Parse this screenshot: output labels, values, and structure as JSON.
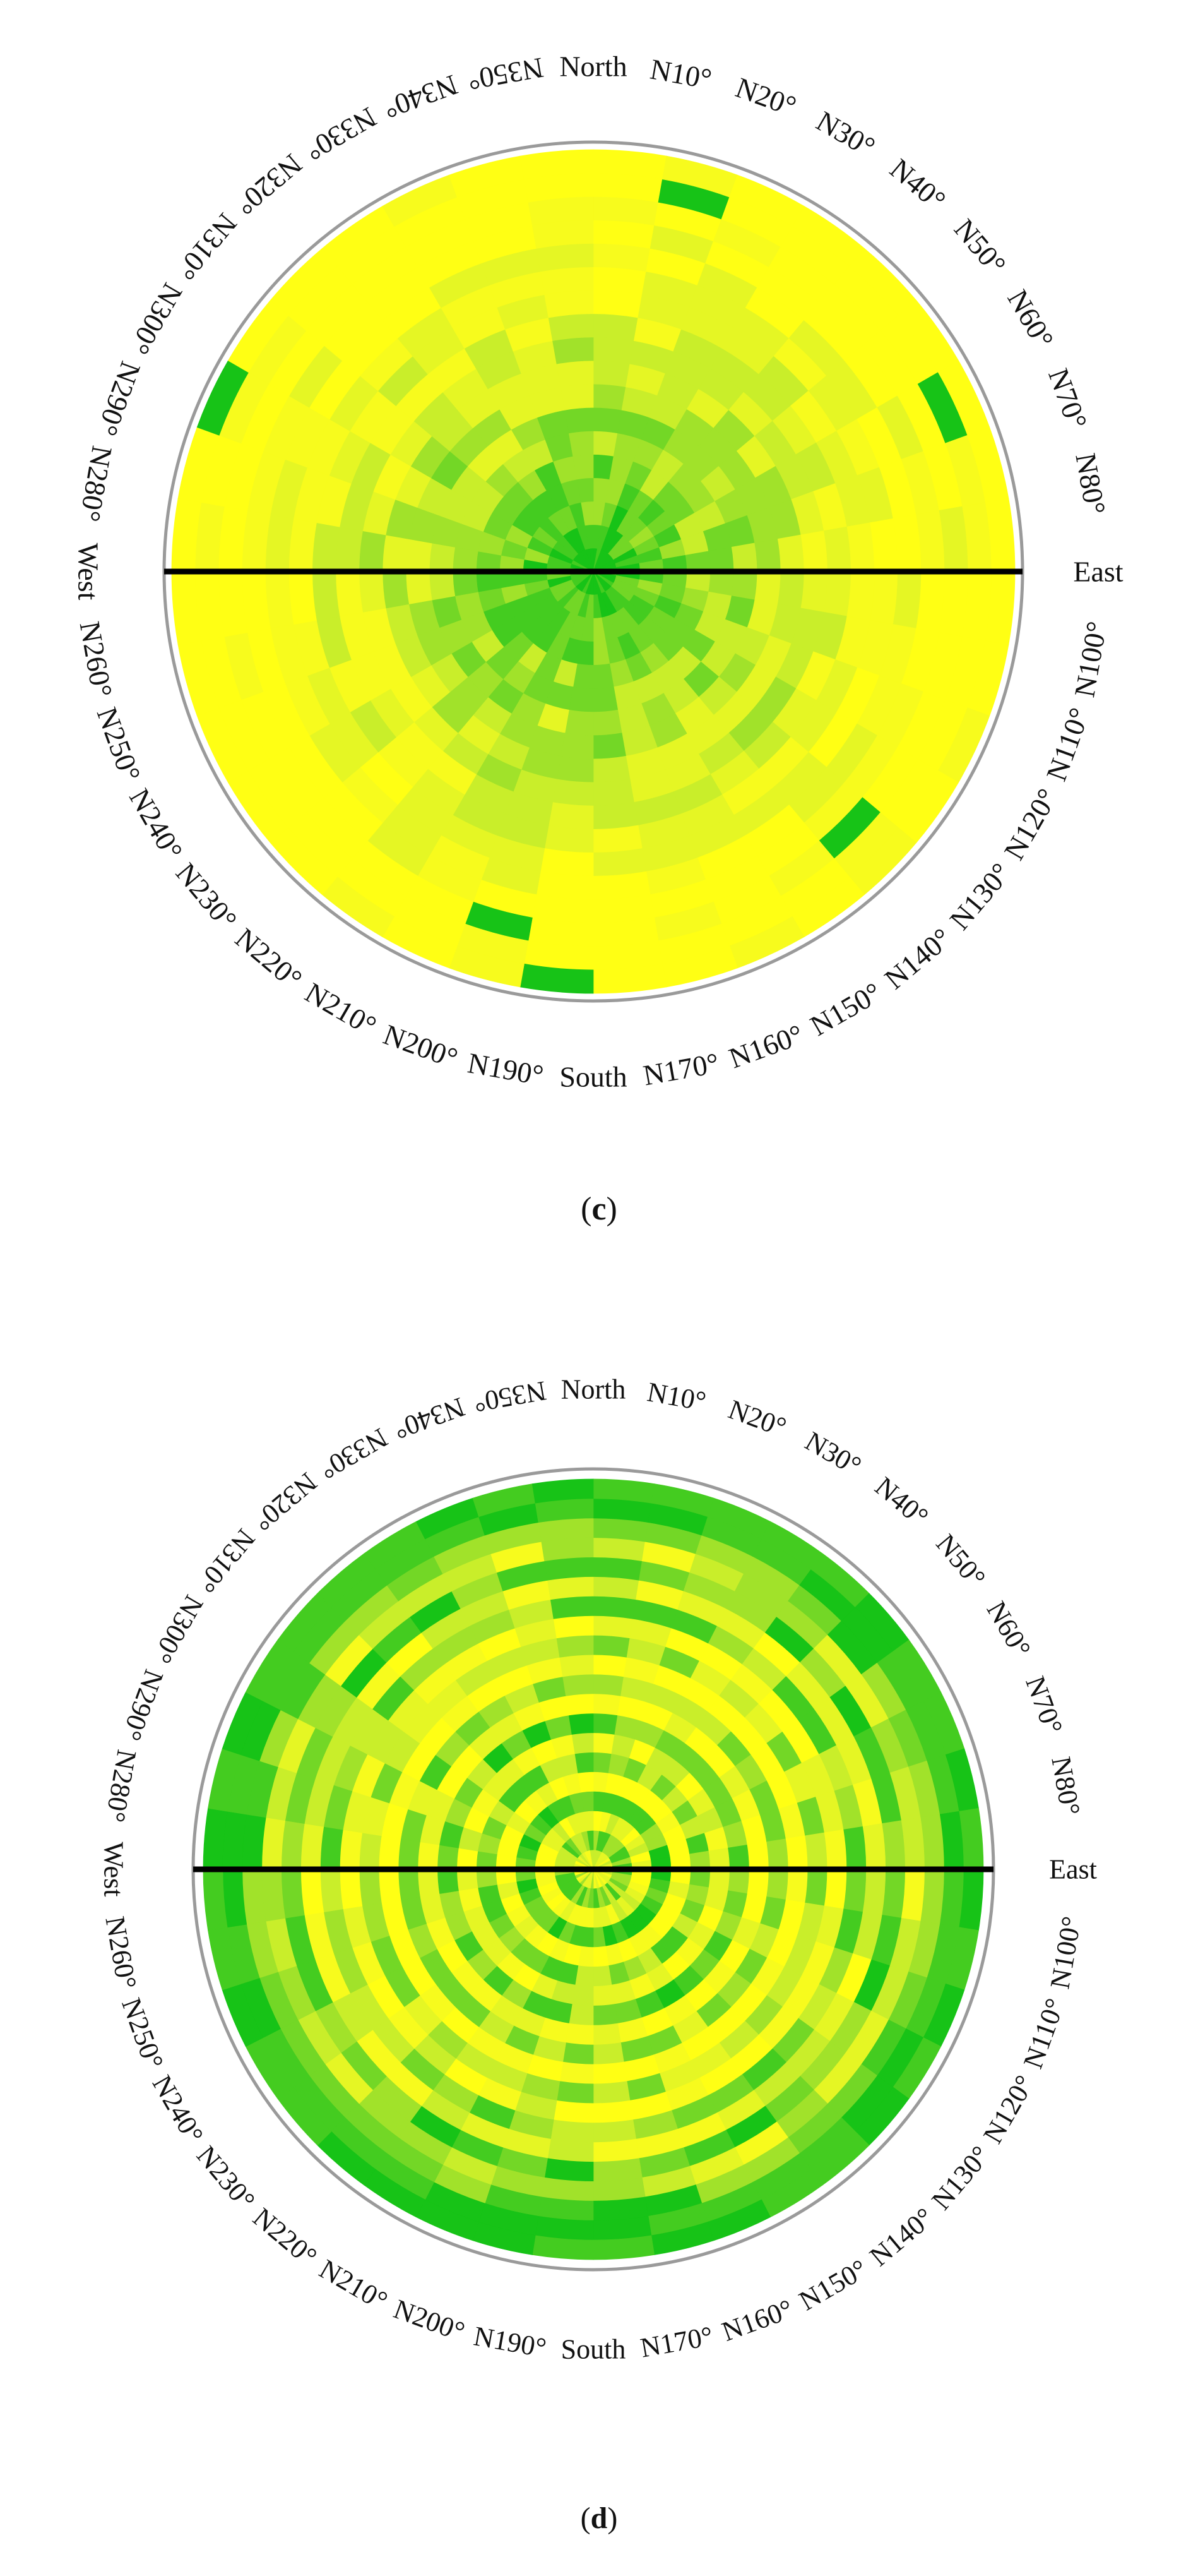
{
  "chart_data": [
    {
      "type": "heatmap",
      "subtype": "polar",
      "panel_label": "c",
      "title": "",
      "direction_labels": [
        "North",
        "N10°",
        "N20°",
        "N30°",
        "N40°",
        "N50°",
        "N60°",
        "N70°",
        "N80°",
        "East",
        "N100°",
        "N110°",
        "N120°",
        "N130°",
        "N140°",
        "N150°",
        "N160°",
        "N170°",
        "South",
        "N190°",
        "N200°",
        "N210°",
        "N220°",
        "N230°",
        "N240°",
        "N250°",
        "N260°",
        "West",
        "N280°",
        "N290°",
        "N300°",
        "N310°",
        "N320°",
        "N330°",
        "N340°",
        "N350°"
      ],
      "color_scale": [
        "#17c317",
        "#44cc20",
        "#73d726",
        "#a1e22a",
        "#c9ee2a",
        "#e5f624",
        "#f7fb1d",
        "#ffff14"
      ],
      "colors": {
        "ring": "#9a9a9a",
        "axis_line": "#000000"
      },
      "axis_line": "West–East",
      "mode": "low-center"
    },
    {
      "type": "heatmap",
      "subtype": "polar",
      "panel_label": "d",
      "title": "",
      "direction_labels": [
        "North",
        "N10°",
        "N20°",
        "N30°",
        "N40°",
        "N50°",
        "N60°",
        "N70°",
        "N80°",
        "East",
        "N100°",
        "N110°",
        "N120°",
        "N130°",
        "N140°",
        "N150°",
        "N160°",
        "N170°",
        "South",
        "N190°",
        "N200°",
        "N210°",
        "N220°",
        "N230°",
        "N240°",
        "N250°",
        "N260°",
        "West",
        "N280°",
        "N290°",
        "N300°",
        "N310°",
        "N320°",
        "N330°",
        "N340°",
        "N350°"
      ],
      "color_scale": [
        "#17c317",
        "#44cc20",
        "#73d726",
        "#a1e22a",
        "#c9ee2a",
        "#e5f624",
        "#f7fb1d",
        "#ffff14"
      ],
      "colors": {
        "ring": "#9a9a9a",
        "axis_line": "#000000"
      },
      "axis_line": "West–East",
      "mode": "banded"
    }
  ],
  "captions": [
    {
      "open": "(",
      "letter": "c",
      "close": ")"
    },
    {
      "open": "(",
      "letter": "d",
      "close": ")"
    }
  ]
}
